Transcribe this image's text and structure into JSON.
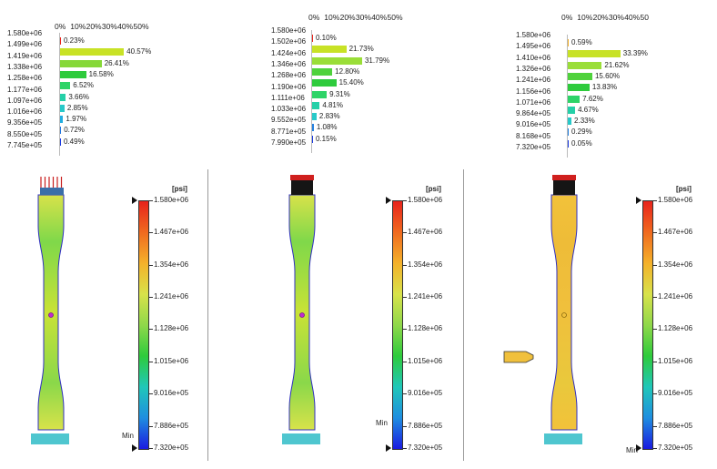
{
  "percent_ticks": [
    "0%",
    "10%",
    "20%",
    "30%",
    "40%",
    "50%"
  ],
  "percent_ticks_right": [
    "0%",
    "10%",
    "20%",
    "30%",
    "40%",
    "50"
  ],
  "histograms": [
    {
      "bins": [
        "1.580e+06",
        "1.499e+06",
        "1.419e+06",
        "1.338e+06",
        "1.258e+06",
        "1.177e+06",
        "1.097e+06",
        "1.016e+06",
        "9.356e+05",
        "8.550e+05",
        "7.745e+05"
      ],
      "bars": [
        {
          "label": "0.23%",
          "value": 0.23,
          "color": "#e8231c"
        },
        {
          "label": "40.57%",
          "value": 40.57,
          "color": "#c8e226"
        },
        {
          "label": "26.41%",
          "value": 26.41,
          "color": "#86d838"
        },
        {
          "label": "16.58%",
          "value": 16.58,
          "color": "#2ecb3c"
        },
        {
          "label": "6.52%",
          "value": 6.52,
          "color": "#2ed468"
        },
        {
          "label": "3.66%",
          "value": 3.66,
          "color": "#25d0a8"
        },
        {
          "label": "2.85%",
          "value": 2.85,
          "color": "#28c9c9"
        },
        {
          "label": "1.97%",
          "value": 1.97,
          "color": "#23aee0"
        },
        {
          "label": "0.72%",
          "value": 0.72,
          "color": "#2277e0"
        },
        {
          "label": "0.49%",
          "value": 0.49,
          "color": "#1a3ae0"
        }
      ]
    },
    {
      "bins": [
        "1.580e+06",
        "1.502e+06",
        "1.424e+06",
        "1.346e+06",
        "1.268e+06",
        "1.190e+06",
        "1.111e+06",
        "1.033e+06",
        "9.552e+05",
        "8.771e+05",
        "7.990e+05"
      ],
      "bars": [
        {
          "label": "0.10%",
          "value": 0.1,
          "color": "#e8231c"
        },
        {
          "label": "21.73%",
          "value": 21.73,
          "color": "#c8e226"
        },
        {
          "label": "31.79%",
          "value": 31.79,
          "color": "#9ade38"
        },
        {
          "label": "12.80%",
          "value": 12.8,
          "color": "#4fd23c"
        },
        {
          "label": "15.40%",
          "value": 15.4,
          "color": "#2ecb3c"
        },
        {
          "label": "9.31%",
          "value": 9.31,
          "color": "#2ed468"
        },
        {
          "label": "4.81%",
          "value": 4.81,
          "color": "#25d0a8"
        },
        {
          "label": "2.83%",
          "value": 2.83,
          "color": "#28c9c9"
        },
        {
          "label": "1.08%",
          "value": 1.08,
          "color": "#2380e0"
        },
        {
          "label": "0.15%",
          "value": 0.15,
          "color": "#1a3ae0"
        }
      ]
    },
    {
      "bins": [
        "1.580e+06",
        "1.495e+06",
        "1.410e+06",
        "1.326e+06",
        "1.241e+06",
        "1.156e+06",
        "1.071e+06",
        "9.864e+05",
        "9.016e+05",
        "8.168e+05",
        "7.320e+05"
      ],
      "bars": [
        {
          "label": "0.59%",
          "value": 0.59,
          "color": "#f4b12a"
        },
        {
          "label": "33.39%",
          "value": 33.39,
          "color": "#c8e226"
        },
        {
          "label": "21.62%",
          "value": 21.62,
          "color": "#9ade38"
        },
        {
          "label": "15.60%",
          "value": 15.6,
          "color": "#4fd23c"
        },
        {
          "label": "13.83%",
          "value": 13.83,
          "color": "#2ecb3c"
        },
        {
          "label": "7.62%",
          "value": 7.62,
          "color": "#2ed468"
        },
        {
          "label": "4.67%",
          "value": 4.67,
          "color": "#25d0a8"
        },
        {
          "label": "2.33%",
          "value": 2.33,
          "color": "#28c9c9"
        },
        {
          "label": "0.29%",
          "value": 0.29,
          "color": "#2380e0"
        },
        {
          "label": "0.05%",
          "value": 0.05,
          "color": "#1a3ae0"
        }
      ]
    }
  ],
  "colorbar": {
    "unit": "[psi]",
    "labels": [
      "1.580e+06",
      "1.467e+06",
      "1.354e+06",
      "1.241e+06",
      "1.128e+06",
      "1.015e+06",
      "9.016e+05",
      "7.886e+05",
      "7.320e+05"
    ],
    "min_label": "Min",
    "gradient_colors": [
      "#e8231c",
      "#f06a1f",
      "#f4b12a",
      "#d8e24a",
      "#8fd84a",
      "#2ecb3c",
      "#20c7b9",
      "#1f8ee0",
      "#1a1ae0"
    ]
  }
}
